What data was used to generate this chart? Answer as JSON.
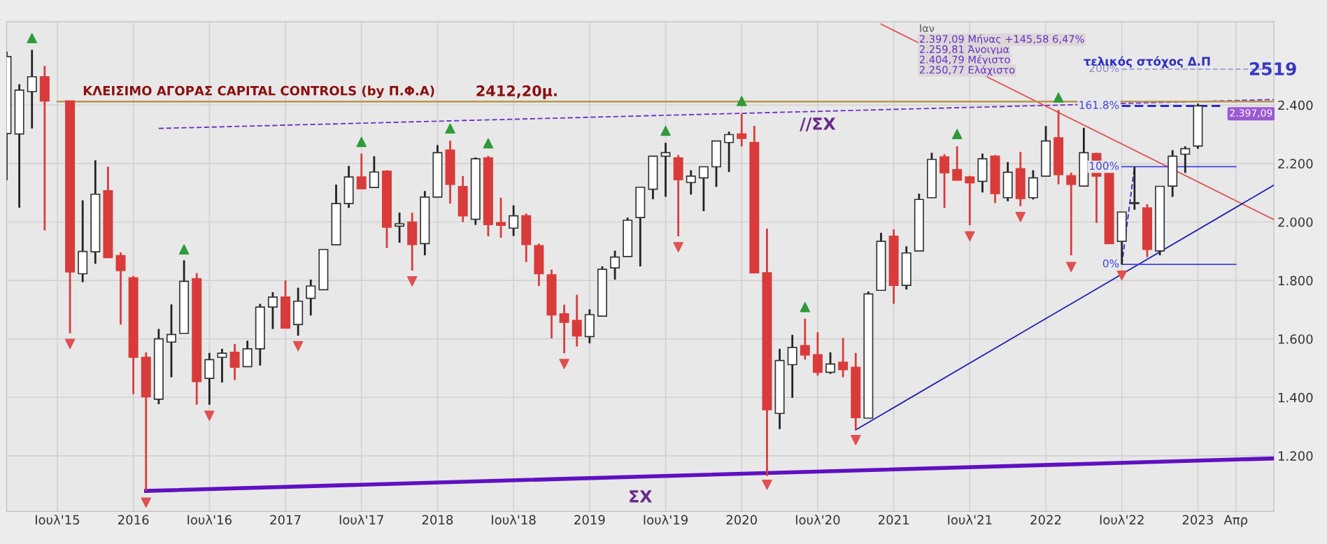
{
  "chart_data": {
    "type": "candlestick",
    "xlim": [
      "2015-03",
      "2023-07"
    ],
    "ylim": [
      1010,
      2685
    ],
    "xticks": [
      {
        "value": "2015-07",
        "label": "Ιουλ'15"
      },
      {
        "value": "2016-01",
        "label": "2016"
      },
      {
        "value": "2016-07",
        "label": "Ιουλ'16"
      },
      {
        "value": "2017-01",
        "label": "2017"
      },
      {
        "value": "2017-07",
        "label": "Ιουλ'17"
      },
      {
        "value": "2018-01",
        "label": "2018"
      },
      {
        "value": "2018-07",
        "label": "Ιουλ'18"
      },
      {
        "value": "2019-01",
        "label": "2019"
      },
      {
        "value": "2019-07",
        "label": "Ιουλ'19"
      },
      {
        "value": "2020-01",
        "label": "2020"
      },
      {
        "value": "2020-07",
        "label": "Ιουλ'20"
      },
      {
        "value": "2021-01",
        "label": "2021"
      },
      {
        "value": "2021-07",
        "label": "Ιουλ'21"
      },
      {
        "value": "2022-01",
        "label": "2022"
      },
      {
        "value": "2022-07",
        "label": "Ιουλ'22"
      },
      {
        "value": "2023-01",
        "label": "2023"
      },
      {
        "value": "2023-04",
        "label": "Απρ"
      }
    ],
    "yticks": [
      {
        "value": 1200,
        "label": "1.200"
      },
      {
        "value": 1400,
        "label": "1.400"
      },
      {
        "value": 1600,
        "label": "1.600"
      },
      {
        "value": 1800,
        "label": "1.800"
      },
      {
        "value": 2000,
        "label": "2.000"
      },
      {
        "value": 2200,
        "label": "2.200"
      },
      {
        "value": 2400,
        "label": "2.400"
      }
    ],
    "grid": true,
    "legend": false,
    "series": [
      {
        "colors": [
          "#ffffff",
          "#ffffff",
          "#ffffff",
          "#d93b3b",
          "#d93b3b",
          "#ffffff",
          "#ffffff",
          "#d93b3b",
          "#d93b3b",
          "#d93b3b",
          "#d93b3b",
          "#ffffff",
          "#ffffff",
          "#ffffff",
          "#d93b3b",
          "#ffffff",
          "#ffffff",
          "#d93b3b",
          "#ffffff",
          "#ffffff",
          "#ffffff",
          "#d93b3b",
          "#ffffff",
          "#ffffff",
          "#ffffff",
          "#ffffff",
          "#ffffff",
          "#d93b3b",
          "#ffffff",
          "#d93b3b",
          "#ffffff",
          "#d93b3b",
          "#ffffff",
          "#ffffff",
          "#d93b3b",
          "#d93b3b",
          "#ffffff",
          "#d93b3b",
          "#d93b3b",
          "#ffffff",
          "#d93b3b",
          "#d93b3b",
          "#d93b3b",
          "#d93b3b",
          "#d93b3b",
          "#ffffff",
          "#ffffff",
          "#ffffff",
          "#ffffff",
          "#ffffff",
          "#ffffff",
          "#ffffff",
          "#d93b3b",
          "#ffffff",
          "#ffffff",
          "#ffffff",
          "#ffffff",
          "#d93b3b",
          "#d93b3b",
          "#d93b3b",
          "#ffffff",
          "#ffffff",
          "#d93b3b",
          "#d93b3b",
          "#ffffff",
          "#d93b3b",
          "#d93b3b",
          "#ffffff",
          "#ffffff",
          "#d93b3b",
          "#ffffff",
          "#ffffff",
          "#ffffff",
          "#d93b3b",
          "#d93b3b",
          "#d93b3b",
          "#ffffff",
          "#d93b3b",
          "#ffffff",
          "#d93b3b",
          "#ffffff",
          "#ffffff",
          "#d93b3b",
          "#d93b3b",
          "#ffffff",
          "#d93b3b",
          "#d93b3b",
          "#ffffff",
          "#ffffff",
          "#d93b3b",
          "#ffffff",
          "#ffffff",
          "#ffffff",
          "#ffffff"
        ],
        "x": [
          "2015-03",
          "2015-04",
          "2015-05",
          "2015-06",
          "2015-08",
          "2015-09",
          "2015-10",
          "2015-11",
          "2015-12",
          "2016-01",
          "2016-02",
          "2016-03",
          "2016-04",
          "2016-05",
          "2016-06",
          "2016-07",
          "2016-08",
          "2016-09",
          "2016-10",
          "2016-11",
          "2016-12",
          "2017-01",
          "2017-02",
          "2017-03",
          "2017-04",
          "2017-05",
          "2017-06",
          "2017-07",
          "2017-08",
          "2017-09",
          "2017-10",
          "2017-11",
          "2017-12",
          "2018-01",
          "2018-02",
          "2018-03",
          "2018-04",
          "2018-05",
          "2018-06",
          "2018-07",
          "2018-08",
          "2018-09",
          "2018-10",
          "2018-11",
          "2018-12",
          "2019-01",
          "2019-02",
          "2019-03",
          "2019-04",
          "2019-05",
          "2019-06",
          "2019-07",
          "2019-08",
          "2019-09",
          "2019-10",
          "2019-11",
          "2019-12",
          "2020-01",
          "2020-02",
          "2020-03",
          "2020-04",
          "2020-05",
          "2020-06",
          "2020-07",
          "2020-08",
          "2020-09",
          "2020-10",
          "2020-11",
          "2020-12",
          "2021-01",
          "2021-02",
          "2021-03",
          "2021-04",
          "2021-05",
          "2021-06",
          "2021-07",
          "2021-08",
          "2021-09",
          "2021-10",
          "2021-11",
          "2021-12",
          "2022-01",
          "2022-02",
          "2022-03",
          "2022-04",
          "2022-05",
          "2022-06",
          "2022-07",
          "2022-08",
          "2022-09",
          "2022-10",
          "2022-11",
          "2022-12",
          "2023-01"
        ],
        "ohlc": [
          [
            2303,
            2583,
            2143,
            2566
          ],
          [
            2301,
            2471,
            2049,
            2451
          ],
          [
            2446,
            2589,
            2320,
            2497
          ],
          [
            2497,
            2534,
            1971,
            2414
          ],
          [
            2414,
            2414,
            1619,
            1829
          ],
          [
            1823,
            2074,
            1794,
            1899
          ],
          [
            1898,
            2211,
            1857,
            2095
          ],
          [
            2107,
            2189,
            1878,
            1878
          ],
          [
            1885,
            1896,
            1649,
            1834
          ],
          [
            1809,
            1815,
            1411,
            1537
          ],
          [
            1537,
            1554,
            1080,
            1402
          ],
          [
            1394,
            1634,
            1377,
            1600
          ],
          [
            1589,
            1718,
            1469,
            1615
          ],
          [
            1619,
            1869,
            1619,
            1797
          ],
          [
            1806,
            1825,
            1375,
            1454
          ],
          [
            1465,
            1552,
            1375,
            1529
          ],
          [
            1537,
            1566,
            1451,
            1551
          ],
          [
            1554,
            1583,
            1459,
            1503
          ],
          [
            1505,
            1594,
            1505,
            1566
          ],
          [
            1566,
            1720,
            1509,
            1709
          ],
          [
            1709,
            1760,
            1634,
            1743
          ],
          [
            1743,
            1800,
            1637,
            1637
          ],
          [
            1649,
            1775,
            1611,
            1729
          ],
          [
            1739,
            1803,
            1680,
            1781
          ],
          [
            1768,
            1906,
            1768,
            1906
          ],
          [
            1922,
            2128,
            1922,
            2063
          ],
          [
            2063,
            2192,
            2048,
            2154
          ],
          [
            2154,
            2234,
            2114,
            2114
          ],
          [
            2118,
            2225,
            2118,
            2171
          ],
          [
            2174,
            2177,
            1911,
            1982
          ],
          [
            1986,
            2032,
            1929,
            1994
          ],
          [
            2000,
            2032,
            1834,
            1923
          ],
          [
            1926,
            2106,
            1886,
            2085
          ],
          [
            2085,
            2263,
            2085,
            2237
          ],
          [
            2246,
            2278,
            2063,
            2129
          ],
          [
            2121,
            2157,
            2000,
            2021
          ],
          [
            2009,
            2221,
            1990,
            2216
          ],
          [
            2219,
            2226,
            1951,
            1991
          ],
          [
            1998,
            2083,
            1946,
            1989
          ],
          [
            1979,
            2057,
            1952,
            2021
          ],
          [
            2021,
            2029,
            1863,
            1923
          ],
          [
            1919,
            1926,
            1781,
            1823
          ],
          [
            1819,
            1837,
            1602,
            1682
          ],
          [
            1686,
            1717,
            1551,
            1657
          ],
          [
            1663,
            1751,
            1574,
            1610
          ],
          [
            1608,
            1701,
            1585,
            1683
          ],
          [
            1678,
            1848,
            1678,
            1838
          ],
          [
            1843,
            1902,
            1803,
            1880
          ],
          [
            1882,
            2015,
            1882,
            2006
          ],
          [
            2015,
            2119,
            1848,
            2119
          ],
          [
            2112,
            2225,
            2078,
            2225
          ],
          [
            2225,
            2271,
            2086,
            2237
          ],
          [
            2219,
            2229,
            1951,
            2145
          ],
          [
            2135,
            2177,
            2094,
            2157
          ],
          [
            2151,
            2189,
            2037,
            2189
          ],
          [
            2189,
            2277,
            2120,
            2277
          ],
          [
            2272,
            2309,
            2171,
            2299
          ],
          [
            2301,
            2371,
            2259,
            2286
          ],
          [
            2272,
            2329,
            1826,
            1826
          ],
          [
            1826,
            1977,
            1131,
            1358
          ],
          [
            1345,
            1566,
            1291,
            1526
          ],
          [
            1512,
            1614,
            1398,
            1571
          ],
          [
            1577,
            1669,
            1529,
            1545
          ],
          [
            1546,
            1623,
            1474,
            1486
          ],
          [
            1486,
            1554,
            1480,
            1514
          ],
          [
            1520,
            1603,
            1469,
            1495
          ],
          [
            1503,
            1552,
            1289,
            1331
          ],
          [
            1329,
            1762,
            1329,
            1754
          ],
          [
            1766,
            1963,
            1766,
            1934
          ],
          [
            1951,
            1975,
            1720,
            1783
          ],
          [
            1783,
            1917,
            1769,
            1894
          ],
          [
            1901,
            2097,
            1901,
            2077
          ],
          [
            2083,
            2237,
            2083,
            2214
          ],
          [
            2223,
            2232,
            2048,
            2168
          ],
          [
            2179,
            2259,
            2143,
            2143
          ],
          [
            2154,
            2158,
            1989,
            2134
          ],
          [
            2139,
            2234,
            2101,
            2216
          ],
          [
            2225,
            2229,
            2065,
            2097
          ],
          [
            2083,
            2205,
            2071,
            2170
          ],
          [
            2182,
            2240,
            2054,
            2080
          ],
          [
            2083,
            2177,
            2077,
            2151
          ],
          [
            2157,
            2328,
            2157,
            2277
          ],
          [
            2288,
            2383,
            2129,
            2162
          ],
          [
            2158,
            2169,
            1886,
            2129
          ],
          [
            2123,
            2322,
            2123,
            2237
          ],
          [
            2234,
            2237,
            1997,
            2157
          ],
          [
            2169,
            2169,
            1926,
            1926
          ],
          [
            1934,
            2034,
            1855,
            2034
          ],
          [
            2063,
            2189,
            2042,
            2066
          ],
          [
            2048,
            2061,
            1880,
            1906
          ],
          [
            1901,
            2122,
            1886,
            2122
          ],
          [
            2123,
            2246,
            2086,
            2225
          ],
          [
            2232,
            2259,
            2168,
            2251
          ],
          [
            2259.81,
            2404.79,
            2250.77,
            2397.09
          ]
        ]
      },
      {
        "type": "line",
        "name": "ΚΛΕΙΣΙΜΟ ΑΓΟΡΑΣ CAPITAL CONTROLS (by Π.Φ.Α)",
        "color": "#b8964f",
        "line_style": "solid",
        "x": [
          "2015-07",
          "2023-07"
        ],
        "values": [
          2412.2,
          2412.2
        ]
      },
      {
        "type": "line",
        "name": "ΣΧ",
        "color": "#6010c0",
        "line_style": "solid",
        "x": [
          "2016-02",
          "2023-07"
        ],
        "values": [
          1080,
          1191
        ]
      },
      {
        "type": "line",
        "name": "//ΣΧ",
        "color": "#6a2fc7",
        "line_style": "dashed",
        "x": [
          "2016-03",
          "2023-07"
        ],
        "values": [
          2320,
          2419
        ]
      },
      {
        "type": "line",
        "color": "#e05050",
        "line_style": "solid",
        "x": [
          "2020-12",
          "2023-07"
        ],
        "values": [
          2677,
          2008
        ]
      },
      {
        "type": "line",
        "color": "#2020b0",
        "line_style": "solid",
        "x": [
          "2020-10",
          "2023-07"
        ],
        "values": [
          1289,
          2126
        ]
      },
      {
        "type": "line",
        "name": "0%",
        "color": "#4040e0",
        "line_style": "solid",
        "x": [
          "2022-07",
          "2023-04"
        ],
        "values": [
          1855,
          1855
        ]
      },
      {
        "type": "line",
        "name": "100%",
        "color": "#4040e0",
        "line_style": "solid",
        "x": [
          "2022-07",
          "2023-04"
        ],
        "values": [
          2189,
          2189
        ]
      },
      {
        "type": "line",
        "name": "161.8%",
        "color": "#2a2ad0",
        "line_style": "dashed",
        "x": [
          "2022-07",
          "2023-03"
        ],
        "values": [
          2397.09,
          2397.09
        ]
      },
      {
        "type": "line",
        "name": "200%",
        "color": "#9a9ad8",
        "line_style": "dashed",
        "x": [
          "2022-07",
          "2023-07"
        ],
        "values": [
          2523,
          2523
        ]
      },
      {
        "type": "line",
        "color": "#2a2ad0",
        "line_style": "dashed",
        "x": [
          "2022-07",
          "2022-08"
        ],
        "values": [
          1855,
          2189
        ]
      },
      {
        "type": "scatter",
        "color": "#2e9a3a",
        "marker": "triangle",
        "x": [
          "2015-05",
          "2016-05",
          "2017-07",
          "2018-02",
          "2018-05",
          "2019-07",
          "2020-01",
          "2020-06",
          "2021-06",
          "2022-02"
        ],
        "values": [
          2629,
          1906,
          2274,
          2320,
          2269,
          2312,
          2414,
          1709,
          2301,
          2426
        ]
      },
      {
        "type": "scatter",
        "color": "#e05050",
        "marker": "triangle_down",
        "x": [
          "2015-08",
          "2016-02",
          "2016-07",
          "2017-02",
          "2017-11",
          "2018-11",
          "2019-08",
          "2020-03",
          "2020-10",
          "2021-07",
          "2021-11",
          "2022-03",
          "2022-07"
        ],
        "values": [
          1583,
          1040,
          1337,
          1575,
          1797,
          1514,
          1914,
          1101,
          1254,
          1951,
          2017,
          1846,
          1817
        ]
      }
    ],
    "annotations": [
      {
        "text": "2412,20μ.",
        "x": "2018-04",
        "y": 2412.2
      },
      "2.397,09",
      {
        "text": "τελικός στόχος Δ.Π",
        "x": "2022-09",
        "y": 2523
      },
      {
        "text": "2519",
        "x": "2023-05",
        "y": 2519
      },
      "Ιαν",
      "2.397,09 Μήνας +145,58 6,47%",
      "2.259,81 Άνοιγμα",
      "2.404,79 Μέγιστο",
      "2.250,77 Ελάχιστο"
    ]
  }
}
